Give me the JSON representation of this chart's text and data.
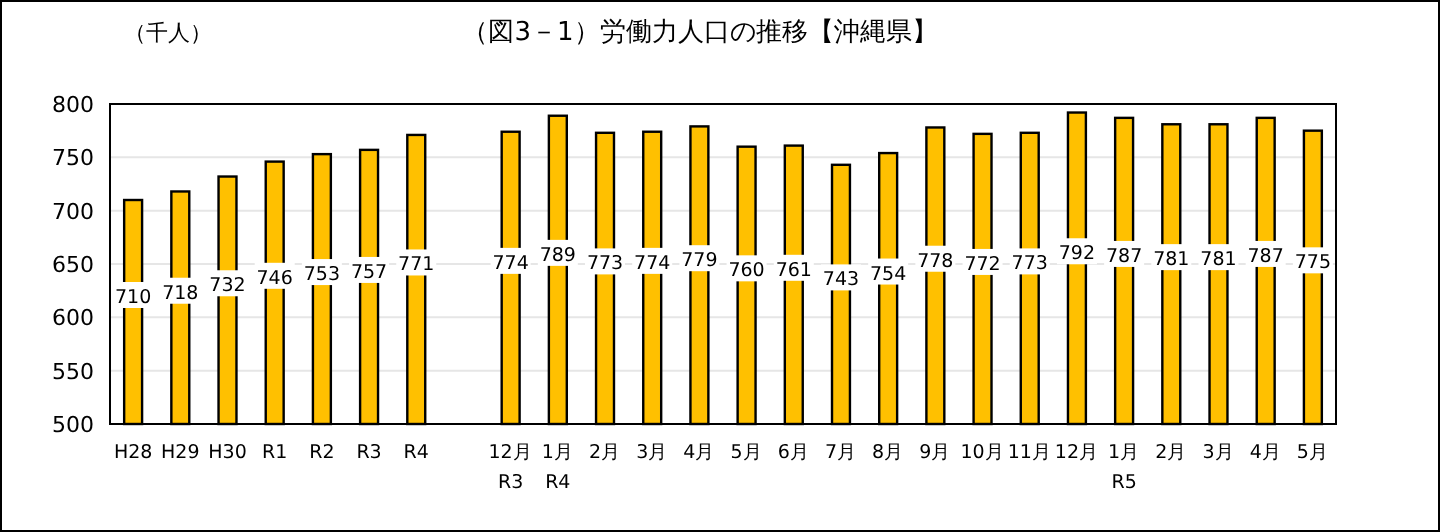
{
  "chart_data": {
    "type": "bar",
    "title": "（図3－1）労働力人口の推移【沖縄県】",
    "ylabel": "（千人）",
    "categories": [
      "H28",
      "H29",
      "H30",
      "R1",
      "R2",
      "R3",
      "R4",
      null,
      "12月\nR3",
      "1月\nR4",
      "2月",
      "3月",
      "4月",
      "5月",
      "6月",
      "7月",
      "8月",
      "9月",
      "10月",
      "11月",
      "12月",
      "1月\nR5",
      "2月",
      "3月",
      "4月",
      "5月"
    ],
    "values": [
      710,
      718,
      732,
      746,
      753,
      757,
      771,
      null,
      774,
      789,
      773,
      774,
      779,
      760,
      761,
      743,
      754,
      778,
      772,
      773,
      792,
      787,
      781,
      781,
      787,
      775
    ],
    "color": "#ffc000",
    "ylim": [
      500,
      800
    ],
    "yticks": [
      500,
      550,
      600,
      650,
      700,
      750,
      800
    ],
    "grid": "y",
    "data_labels": true
  }
}
